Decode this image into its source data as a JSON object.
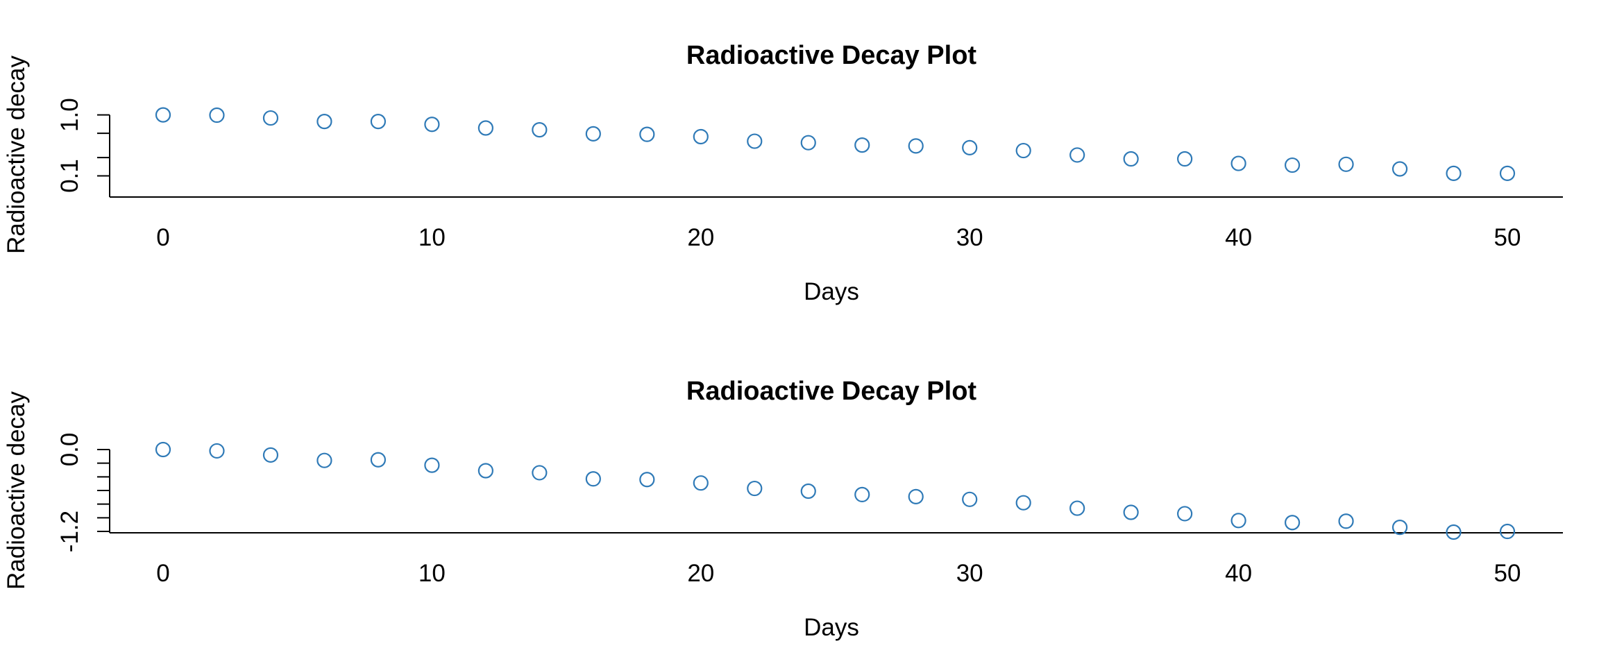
{
  "style": {
    "point_color": "#2f7ab7",
    "axis_color": "#000000",
    "background": "#ffffff"
  },
  "chart_data": [
    {
      "type": "scatter",
      "title": "Radioactive Decay Plot",
      "xlabel": "Days",
      "ylabel": "Radioactive decay",
      "y_scale": "log10",
      "xlim": [
        0,
        50
      ],
      "ylim": [
        0.045,
        1.1
      ],
      "x_ticks": [
        0,
        10,
        20,
        30,
        40,
        50
      ],
      "x_tick_labels": [
        "0",
        "10",
        "20",
        "30",
        "40",
        "50"
      ],
      "y_ticks": [
        0.1,
        0.2,
        0.5,
        1.0
      ],
      "y_tick_labels": [
        "0.1",
        "",
        "",
        "1.0"
      ],
      "grid": false,
      "legend": "none",
      "x": [
        0,
        2,
        4,
        6,
        8,
        10,
        12,
        14,
        16,
        18,
        20,
        22,
        24,
        26,
        28,
        30,
        32,
        34,
        36,
        38,
        40,
        42,
        44,
        46,
        48,
        50
      ],
      "y": [
        1.0,
        0.99,
        0.89,
        0.78,
        0.78,
        0.7,
        0.61,
        0.57,
        0.49,
        0.48,
        0.44,
        0.37,
        0.35,
        0.32,
        0.31,
        0.29,
        0.26,
        0.22,
        0.19,
        0.19,
        0.16,
        0.15,
        0.155,
        0.13,
        0.11,
        0.11
      ]
    },
    {
      "type": "scatter",
      "title": "Radioactive Decay Plot",
      "xlabel": "Days",
      "ylabel": "Radioactive decay",
      "y_scale": "linear",
      "xlim": [
        0,
        50
      ],
      "ylim": [
        -1.22,
        0.02
      ],
      "x_ticks": [
        0,
        10,
        20,
        30,
        40,
        50
      ],
      "x_tick_labels": [
        "0",
        "10",
        "20",
        "30",
        "40",
        "50"
      ],
      "y_ticks": [
        0.0,
        -0.2,
        -0.4,
        -0.6,
        -0.8,
        -1.0,
        -1.2
      ],
      "y_tick_labels": [
        "0.0",
        "",
        "",
        "",
        "",
        "",
        "-1.2"
      ],
      "grid": false,
      "legend": "none",
      "x": [
        0,
        2,
        4,
        6,
        8,
        10,
        12,
        14,
        16,
        18,
        20,
        22,
        24,
        26,
        28,
        30,
        32,
        34,
        36,
        38,
        40,
        42,
        44,
        46,
        48,
        50
      ],
      "y": [
        0.0,
        -0.02,
        -0.08,
        -0.16,
        -0.15,
        -0.23,
        -0.31,
        -0.34,
        -0.43,
        -0.44,
        -0.49,
        -0.57,
        -0.61,
        -0.66,
        -0.69,
        -0.73,
        -0.78,
        -0.86,
        -0.92,
        -0.94,
        -1.04,
        -1.07,
        -1.05,
        -1.14,
        -1.21,
        -1.2
      ]
    }
  ]
}
